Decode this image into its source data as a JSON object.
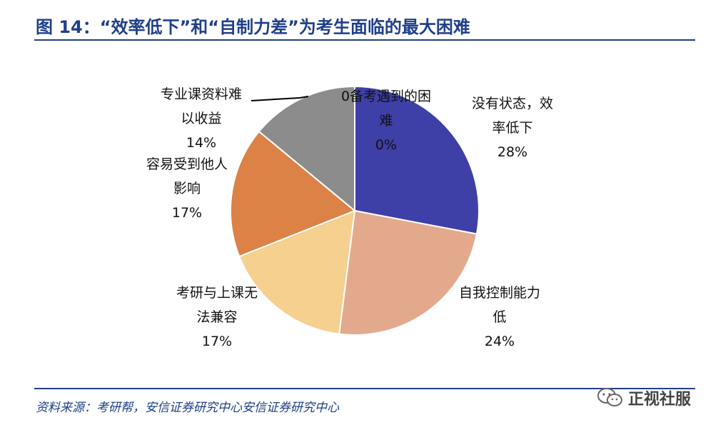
{
  "figure": {
    "title": "图 14：“效率低下”和“自制力差”为考生面临的最大困难",
    "source": "资料来源：考研帮，安信证券研究中心安信证券研究中心"
  },
  "watermark": {
    "text": "正视社服",
    "icon": "wechat-icon"
  },
  "chart_data": {
    "type": "pie",
    "start_angle_deg": 0,
    "direction": "clockwise",
    "slices": [
      {
        "label_lines": [
          "没有状态，效",
          "率低下"
        ],
        "value": 28,
        "pct": "28%",
        "color": "#3f3fa8"
      },
      {
        "label_lines": [
          "自我控制能力",
          "低"
        ],
        "value": 24,
        "pct": "24%",
        "color": "#e3a98c"
      },
      {
        "label_lines": [
          "考研与上课无",
          "法兼容"
        ],
        "value": 17,
        "pct": "17%",
        "color": "#f5d08e"
      },
      {
        "label_lines": [
          "容易受到他人",
          "影响"
        ],
        "value": 17,
        "pct": "17%",
        "color": "#dc8246"
      },
      {
        "label_lines": [
          "专业课资料难",
          "以收益"
        ],
        "value": 14,
        "pct": "14%",
        "color": "#8c8c8c"
      },
      {
        "label_lines": [
          "0备考遇到的困",
          "难"
        ],
        "value": 0,
        "pct": "0%",
        "color": "#7f7f7f"
      }
    ]
  }
}
